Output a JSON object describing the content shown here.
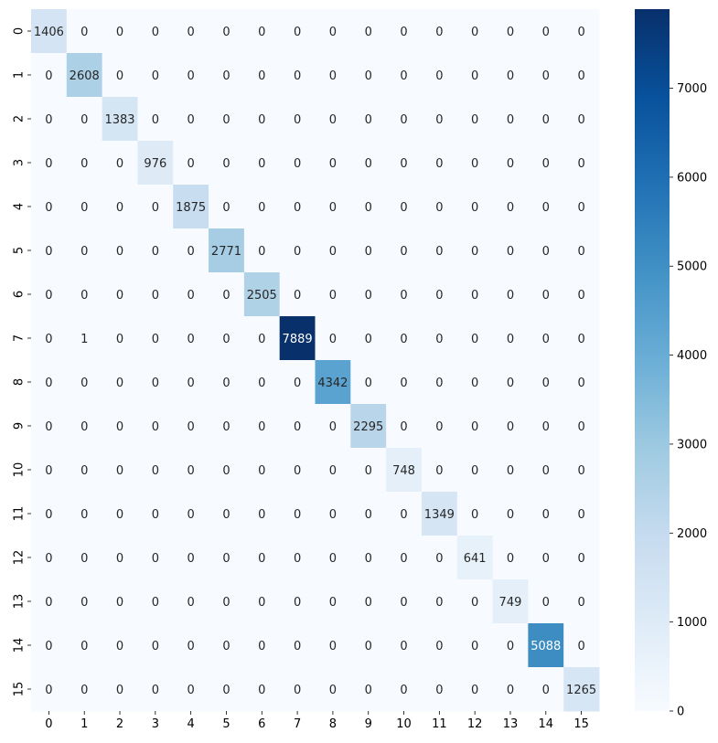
{
  "chart_data": {
    "type": "heatmap",
    "title": "",
    "xlabel": "",
    "ylabel": "",
    "x_labels": [
      "0",
      "1",
      "2",
      "3",
      "4",
      "5",
      "6",
      "7",
      "8",
      "9",
      "10",
      "11",
      "12",
      "13",
      "14",
      "15"
    ],
    "y_labels": [
      "0",
      "1",
      "2",
      "3",
      "4",
      "5",
      "6",
      "7",
      "8",
      "9",
      "10",
      "11",
      "12",
      "13",
      "14",
      "15"
    ],
    "matrix": [
      [
        1406,
        0,
        0,
        0,
        0,
        0,
        0,
        0,
        0,
        0,
        0,
        0,
        0,
        0,
        0,
        0
      ],
      [
        0,
        2608,
        0,
        0,
        0,
        0,
        0,
        0,
        0,
        0,
        0,
        0,
        0,
        0,
        0,
        0
      ],
      [
        0,
        0,
        1383,
        0,
        0,
        0,
        0,
        0,
        0,
        0,
        0,
        0,
        0,
        0,
        0,
        0
      ],
      [
        0,
        0,
        0,
        976,
        0,
        0,
        0,
        0,
        0,
        0,
        0,
        0,
        0,
        0,
        0,
        0
      ],
      [
        0,
        0,
        0,
        0,
        1875,
        0,
        0,
        0,
        0,
        0,
        0,
        0,
        0,
        0,
        0,
        0
      ],
      [
        0,
        0,
        0,
        0,
        0,
        2771,
        0,
        0,
        0,
        0,
        0,
        0,
        0,
        0,
        0,
        0
      ],
      [
        0,
        0,
        0,
        0,
        0,
        0,
        2505,
        0,
        0,
        0,
        0,
        0,
        0,
        0,
        0,
        0
      ],
      [
        0,
        1,
        0,
        0,
        0,
        0,
        0,
        7889,
        0,
        0,
        0,
        0,
        0,
        0,
        0,
        0
      ],
      [
        0,
        0,
        0,
        0,
        0,
        0,
        0,
        0,
        4342,
        0,
        0,
        0,
        0,
        0,
        0,
        0
      ],
      [
        0,
        0,
        0,
        0,
        0,
        0,
        0,
        0,
        0,
        2295,
        0,
        0,
        0,
        0,
        0,
        0
      ],
      [
        0,
        0,
        0,
        0,
        0,
        0,
        0,
        0,
        0,
        0,
        748,
        0,
        0,
        0,
        0,
        0
      ],
      [
        0,
        0,
        0,
        0,
        0,
        0,
        0,
        0,
        0,
        0,
        0,
        1349,
        0,
        0,
        0,
        0
      ],
      [
        0,
        0,
        0,
        0,
        0,
        0,
        0,
        0,
        0,
        0,
        0,
        0,
        641,
        0,
        0,
        0
      ],
      [
        0,
        0,
        0,
        0,
        0,
        0,
        0,
        0,
        0,
        0,
        0,
        0,
        0,
        749,
        0,
        0
      ],
      [
        0,
        0,
        0,
        0,
        0,
        0,
        0,
        0,
        0,
        0,
        0,
        0,
        0,
        0,
        5088,
        0
      ],
      [
        0,
        0,
        0,
        0,
        0,
        0,
        0,
        0,
        0,
        0,
        0,
        0,
        0,
        0,
        0,
        1265
      ]
    ],
    "colormap": "Blues",
    "color_range": [
      0,
      7889
    ],
    "colorbar_ticks": [
      0,
      1000,
      2000,
      3000,
      4000,
      5000,
      6000,
      7000
    ]
  }
}
